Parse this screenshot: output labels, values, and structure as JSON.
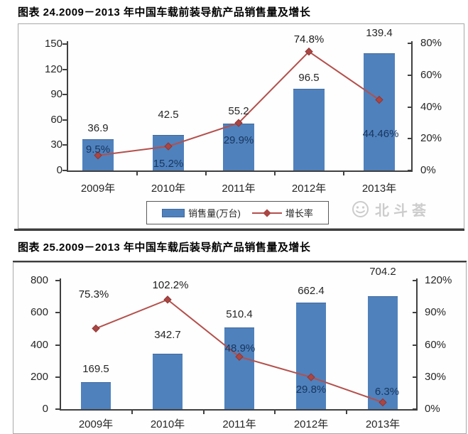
{
  "chart_data": [
    {
      "type": "bar+line",
      "title": "图表 24.2009－2013 年中国车载前装导航产品销售量及增长",
      "categories": [
        "2009年",
        "2010年",
        "2011年",
        "2012年",
        "2013年"
      ],
      "series": [
        {
          "name": "销售量(万台)",
          "type": "bar",
          "axis": "left",
          "values": [
            36.9,
            42.5,
            55.2,
            96.5,
            139.4
          ],
          "labels": [
            "36.9",
            "42.5",
            "55.2",
            "96.5",
            "139.4"
          ]
        },
        {
          "name": "增长率",
          "type": "line",
          "axis": "right",
          "values": [
            9.5,
            15.2,
            29.9,
            74.8,
            44.46
          ],
          "labels": [
            "9.5%",
            "15.2%",
            "29.9%",
            "74.8%",
            "44.46%"
          ]
        }
      ],
      "left_axis": {
        "min": 0,
        "max": 150,
        "tick_labels": [
          "0",
          "30",
          "60",
          "90",
          "120",
          "150"
        ]
      },
      "right_axis": {
        "min": 0,
        "max": 80,
        "tick_labels": [
          "0%",
          "20%",
          "40%",
          "60%",
          "80%"
        ]
      },
      "legend": [
        "销售量(万台)",
        "增长率"
      ],
      "legend_position": "bottom",
      "grid": false,
      "watermark": "北斗荟"
    },
    {
      "type": "bar+line",
      "title": "图表 25.2009－2013 年中国车载后装导航产品销售量及增长",
      "categories": [
        "2009年",
        "2010年",
        "2011年",
        "2012年",
        "2013年"
      ],
      "series": [
        {
          "name": "销售量(万台)",
          "type": "bar",
          "axis": "left",
          "values": [
            169.5,
            342.7,
            510.4,
            662.4,
            704.2
          ],
          "labels": [
            "169.5",
            "342.7",
            "510.4",
            "662.4",
            "704.2"
          ]
        },
        {
          "name": "增长率",
          "type": "line",
          "axis": "right",
          "values": [
            75.3,
            102.2,
            48.9,
            29.8,
            6.3
          ],
          "labels": [
            "75.3%",
            "102.2%",
            "48.9%",
            "29.8%",
            "6.3%"
          ]
        }
      ],
      "left_axis": {
        "min": 0,
        "max": 800,
        "tick_labels": [
          "0",
          "200",
          "400",
          "600",
          "800"
        ]
      },
      "right_axis": {
        "min": 0,
        "max": 120,
        "tick_labels": [
          "0%",
          "30%",
          "60%",
          "90%",
          "120%"
        ]
      },
      "grid": false
    }
  ],
  "colors": {
    "bar": "#4f81bd",
    "bar_border": "#41699a",
    "line": "#b4504c",
    "marker_fill": "#aa4643",
    "marker_stroke": "#8e3634",
    "value_label": "#262626",
    "rate_label_on_bar": "#17365d",
    "rate_label_plain": "#1a1a1a",
    "watermark": "#cccccc"
  }
}
